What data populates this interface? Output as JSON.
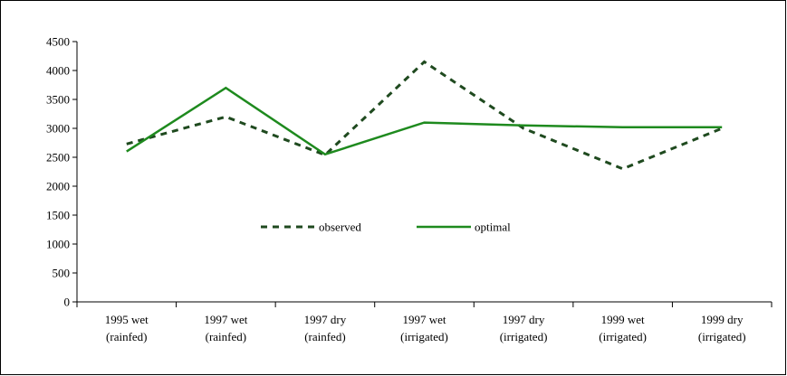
{
  "chart_data": {
    "type": "line",
    "categories": [
      [
        "1995 wet",
        "(rainfed)"
      ],
      [
        "1997 wet",
        "(rainfed)"
      ],
      [
        "1997 dry",
        "(rainfed)"
      ],
      [
        "1997 wet",
        "(irrigated)"
      ],
      [
        "1997 dry",
        "(irrigated)"
      ],
      [
        "1999 wet",
        "(irrigated)"
      ],
      [
        "1999 dry",
        "(irrigated)"
      ]
    ],
    "series": [
      {
        "name": "observed",
        "color": "#1f4a1f",
        "dashed": true,
        "values": [
          2730,
          3200,
          2540,
          4150,
          3000,
          2300,
          3000
        ]
      },
      {
        "name": "optimal",
        "color": "#1e8a1e",
        "dashed": false,
        "values": [
          2600,
          3700,
          2550,
          3100,
          3050,
          3020,
          3020
        ]
      }
    ],
    "ylim": [
      0,
      4500
    ],
    "yticks": [
      0,
      500,
      1000,
      1500,
      2000,
      2500,
      3000,
      3500,
      4000,
      4500
    ],
    "grid": false,
    "legend": "inside-center"
  }
}
